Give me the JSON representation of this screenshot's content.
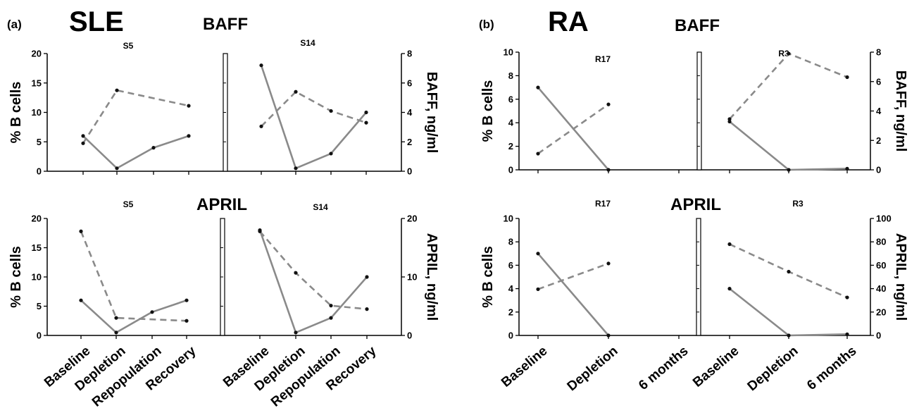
{
  "figure": {
    "panel_a": {
      "letter": "(a)",
      "title": "SLE"
    },
    "panel_b": {
      "letter": "(b)",
      "title": "RA"
    }
  },
  "chart_data": [
    {
      "type": "line",
      "panel": "(a)",
      "disease": "SLE",
      "row": "BAFF",
      "subplot_labels": [
        "S5",
        "S14"
      ],
      "ylabel_left": "% B cells",
      "ylabel_right": "BAFF, ng/ml",
      "y_left_range": [
        0,
        20
      ],
      "y_left_ticks": [
        "0",
        "5",
        "10",
        "15",
        "20"
      ],
      "y_right_range": [
        0,
        8
      ],
      "y_right_ticks": [
        "0",
        "2",
        "4",
        "6",
        "8"
      ],
      "categories": [
        "Baseline",
        "Depletion",
        "Repopulation",
        "Recovery"
      ],
      "series": [
        {
          "subplot": "S5",
          "style": "solid",
          "axis": "left",
          "values": [
            6,
            0.5,
            4,
            6
          ]
        },
        {
          "subplot": "S5",
          "style": "dashed",
          "axis": "right",
          "values": [
            1.9,
            5.5,
            null,
            4.45
          ]
        },
        {
          "subplot": "S14",
          "style": "solid",
          "axis": "left",
          "values": [
            18,
            0.5,
            3,
            10
          ]
        },
        {
          "subplot": "S14",
          "style": "dashed",
          "axis": "right",
          "values": [
            3.05,
            5.4,
            4.1,
            3.3
          ]
        }
      ]
    },
    {
      "type": "line",
      "panel": "(a)",
      "disease": "SLE",
      "row": "APRIL",
      "subplot_labels": [
        "S5",
        "S14"
      ],
      "ylabel_left": "% B cells",
      "ylabel_right": "APRIL, ng/ml",
      "y_left_range": [
        0,
        20
      ],
      "y_left_ticks": [
        "0",
        "5",
        "10",
        "15",
        "20"
      ],
      "y_right_range": [
        0,
        20
      ],
      "y_right_ticks": [
        "0",
        "10",
        "20"
      ],
      "categories": [
        "Baseline",
        "Depletion",
        "Repopulation",
        "Recovery"
      ],
      "series": [
        {
          "subplot": "S5",
          "style": "solid",
          "axis": "left",
          "values": [
            6,
            0.5,
            4,
            6
          ]
        },
        {
          "subplot": "S5",
          "style": "dashed",
          "axis": "right",
          "values": [
            17.8,
            3,
            null,
            2.5
          ]
        },
        {
          "subplot": "S14",
          "style": "solid",
          "axis": "left",
          "values": [
            18,
            0.5,
            3,
            10
          ]
        },
        {
          "subplot": "S14",
          "style": "dashed",
          "axis": "right",
          "values": [
            17.8,
            10.7,
            5.1,
            4.5
          ]
        }
      ]
    },
    {
      "type": "line",
      "panel": "(b)",
      "disease": "RA",
      "row": "BAFF",
      "subplot_labels": [
        "R17",
        "R3"
      ],
      "ylabel_left": "% B cells",
      "ylabel_right": "BAFF, ng/ml",
      "y_left_range": [
        0,
        10
      ],
      "y_left_ticks": [
        "0",
        "2",
        "4",
        "6",
        "8",
        "10"
      ],
      "y_right_range": [
        0,
        8
      ],
      "y_right_ticks": [
        "0",
        "2",
        "4",
        "6",
        "8"
      ],
      "categories": [
        "Baseline",
        "Depletion",
        "6 months"
      ],
      "series": [
        {
          "subplot": "R17",
          "style": "solid",
          "axis": "left",
          "values": [
            7,
            0,
            null
          ]
        },
        {
          "subplot": "R17",
          "style": "dashed",
          "axis": "right",
          "values": [
            1.1,
            4.45,
            null
          ]
        },
        {
          "subplot": "R3",
          "style": "solid",
          "axis": "left",
          "values": [
            4.1,
            0,
            0.1
          ]
        },
        {
          "subplot": "R3",
          "style": "dashed",
          "axis": "right",
          "values": [
            3.45,
            7.9,
            6.3
          ]
        }
      ]
    },
    {
      "type": "line",
      "panel": "(b)",
      "disease": "RA",
      "row": "APRIL",
      "subplot_labels": [
        "R17",
        "R3"
      ],
      "ylabel_left": "% B cells",
      "ylabel_right": "APRIL, ng/ml",
      "y_left_range": [
        0,
        10
      ],
      "y_left_ticks": [
        "0",
        "2",
        "4",
        "6",
        "8",
        "10"
      ],
      "y_right_range": [
        0,
        100
      ],
      "y_right_ticks": [
        "0",
        "20",
        "40",
        "60",
        "80",
        "100"
      ],
      "categories": [
        "Baseline",
        "Depletion",
        "6 months"
      ],
      "series": [
        {
          "subplot": "R17",
          "style": "solid",
          "axis": "left",
          "values": [
            7,
            0,
            null
          ]
        },
        {
          "subplot": "R17",
          "style": "dashed",
          "axis": "right",
          "values": [
            39.5,
            61.5,
            null
          ]
        },
        {
          "subplot": "R3",
          "style": "solid",
          "axis": "left",
          "values": [
            4,
            0,
            0.1
          ]
        },
        {
          "subplot": "R3",
          "style": "dashed",
          "axis": "right",
          "values": [
            78,
            54.5,
            32.5
          ]
        }
      ]
    }
  ],
  "colors": {
    "line": "#8a8a8a",
    "marker": "#111111",
    "axis": "#000000"
  }
}
